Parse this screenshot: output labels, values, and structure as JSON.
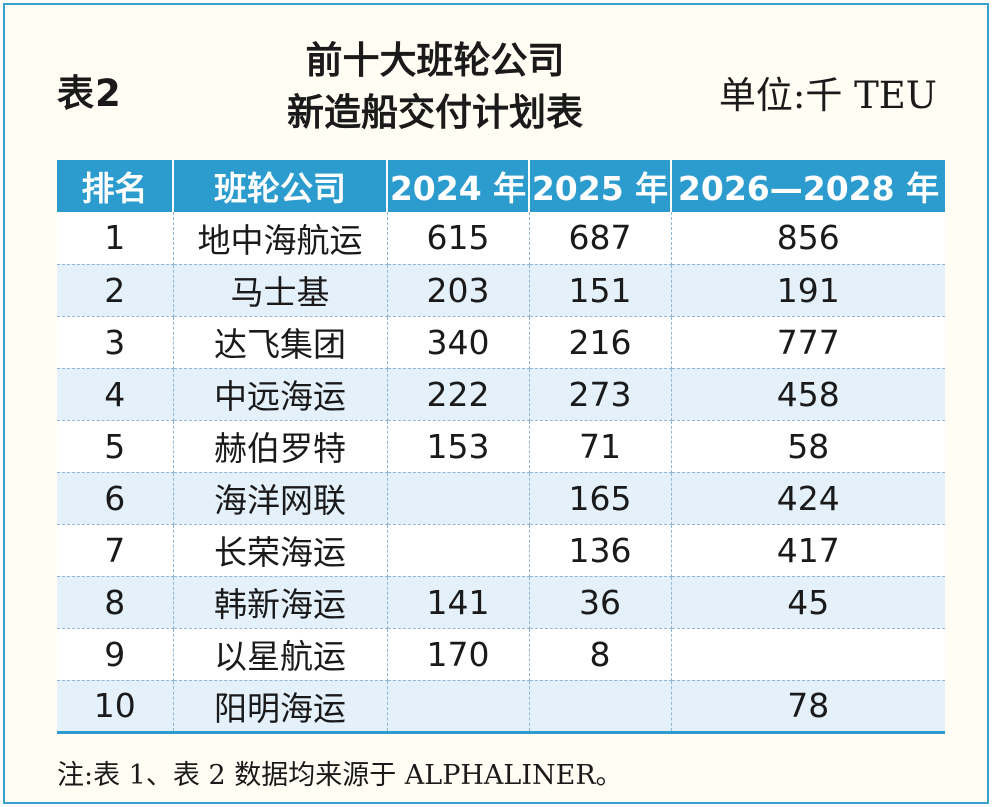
{
  "table_label": "表2",
  "title_line1": "前十大班轮公司",
  "title_line2": "新造船交付计划表",
  "unit": "单位:千 TEU",
  "headers": [
    "排名",
    "班轮公司",
    "2024 年",
    "2025 年",
    "2026—2028 年"
  ],
  "rows": [
    [
      "1",
      "地中海航运",
      "615",
      "687",
      "856"
    ],
    [
      "2",
      "马士基",
      "203",
      "151",
      "191"
    ],
    [
      "3",
      "达飞集团",
      "340",
      "216",
      "777"
    ],
    [
      "4",
      "中远海运",
      "222",
      "273",
      "458"
    ],
    [
      "5",
      "赫伯罗特",
      "153",
      "71",
      "58"
    ],
    [
      "6",
      "海洋网联",
      "",
      "165",
      "424"
    ],
    [
      "7",
      "长荣海运",
      "",
      "136",
      "417"
    ],
    [
      "8",
      "韩新海运",
      "141",
      "36",
      "45"
    ],
    [
      "9",
      "以星航运",
      "170",
      "8",
      ""
    ],
    [
      "10",
      "阳明海运",
      "",
      "",
      "78"
    ]
  ],
  "note": "注:表 1、表 2 数据均来源于 ALPHALINER。",
  "colors": {
    "border": "#3aa0cf",
    "header_bg": "#2c9ccf",
    "stripe": "#e4f0fa"
  }
}
